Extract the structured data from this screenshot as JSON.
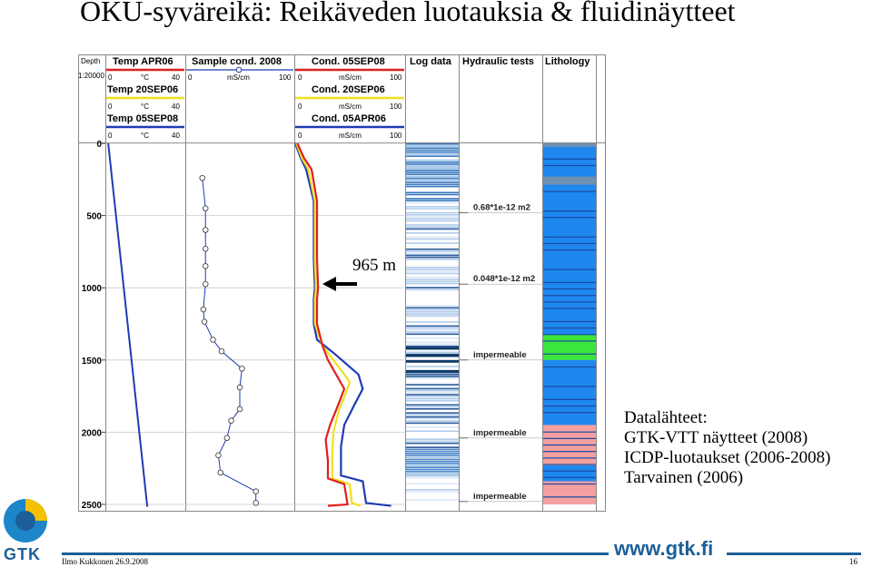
{
  "title": "OKU-syväreikä: Reikäveden luotauksia & fluidinäytteet",
  "header": {
    "depth_label": "Depth",
    "scale_label": "1:20000",
    "columns": [
      {
        "label": "Temp APR06"
      },
      {
        "label": "Sample cond. 2008"
      },
      {
        "label": "Cond. 05SEP08"
      },
      {
        "label": "Log data"
      },
      {
        "label": "Hydraulic tests"
      },
      {
        "label": "Lithology"
      }
    ],
    "temp_legends": [
      {
        "label": "Temp APR06",
        "min": "0",
        "unit": "°C",
        "max": "40",
        "color": "#e02020"
      },
      {
        "label": "Temp 20SEP06",
        "min": "0",
        "unit": "°C",
        "max": "40",
        "color": "#f0e020"
      },
      {
        "label": "Temp 05SEP08",
        "min": "0",
        "unit": "°C",
        "max": "40",
        "color": "#1e3cb4"
      }
    ],
    "sample_legend": {
      "min": "0",
      "unit": "mS/cm",
      "max": "100"
    },
    "cond_legends": [
      {
        "label": "Cond. 05SEP08",
        "min": "0",
        "unit": "mS/cm",
        "max": "100",
        "color": "#e02020"
      },
      {
        "label": "Cond. 20SEP06",
        "min": "0",
        "unit": "mS/cm",
        "max": "100",
        "color": "#f0e020"
      },
      {
        "label": "Cond. 05APR06",
        "min": "0",
        "unit": "mS/cm",
        "max": "100",
        "color": "#1e3cb4"
      }
    ]
  },
  "annotation": {
    "label": "965 m",
    "depth": 965
  },
  "chart_data": {
    "type": "line",
    "title": "OKU-syväreikä: Reikäveden luotauksia & fluidinäytteet",
    "depth_axis": {
      "label": "Depth",
      "ticks": [
        0,
        500,
        1000,
        1500,
        2000,
        2500
      ],
      "range": [
        0,
        2500
      ],
      "inverted": true
    },
    "temperature": {
      "range": [
        0,
        40
      ],
      "series": [
        {
          "depth": [
            0,
            2516
          ],
          "values": [
            1,
            21
          ]
        }
      ]
    },
    "sample_conductivity": {
      "range": [
        0,
        100
      ],
      "points": [
        {
          "depth": 240,
          "value": 15
        },
        {
          "depth": 450,
          "value": 18
        },
        {
          "depth": 600,
          "value": 18
        },
        {
          "depth": 730,
          "value": 18
        },
        {
          "depth": 850,
          "value": 18
        },
        {
          "depth": 975,
          "value": 18
        },
        {
          "depth": 1150,
          "value": 16
        },
        {
          "depth": 1235,
          "value": 17
        },
        {
          "depth": 1360,
          "value": 25
        },
        {
          "depth": 1440,
          "value": 33
        },
        {
          "depth": 1560,
          "value": 52
        },
        {
          "depth": 1690,
          "value": 50
        },
        {
          "depth": 1840,
          "value": 50
        },
        {
          "depth": 1920,
          "value": 42
        },
        {
          "depth": 2040,
          "value": 38
        },
        {
          "depth": 2160,
          "value": 30
        },
        {
          "depth": 2280,
          "value": 32
        },
        {
          "depth": 2410,
          "value": 65
        },
        {
          "depth": 2490,
          "value": 65
        }
      ]
    },
    "conductivity": {
      "range": [
        0,
        100
      ],
      "series": [
        {
          "color": "#1e3cb4",
          "depth": [
            0,
            100,
            180,
            400,
            800,
            1000,
            1080,
            1250,
            1360,
            1450,
            1600,
            1700,
            1800,
            1950,
            2100,
            2300,
            2340,
            2490,
            2510
          ],
          "values": [
            0,
            5,
            10,
            17,
            17,
            18,
            17,
            17,
            20,
            35,
            58,
            62,
            55,
            45,
            42,
            42,
            62,
            65,
            88
          ]
        },
        {
          "color": "#f0e020",
          "depth": [
            0,
            100,
            180,
            400,
            800,
            1000,
            1080,
            1250,
            1400,
            1500,
            1650,
            1720,
            1850,
            2000,
            2150,
            2320,
            2360,
            2490,
            2510
          ],
          "values": [
            1,
            6,
            12,
            18,
            18,
            19,
            18,
            18,
            25,
            35,
            50,
            47,
            40,
            35,
            34,
            34,
            50,
            52,
            60
          ]
        },
        {
          "color": "#e02020",
          "depth": [
            0,
            100,
            180,
            400,
            800,
            1000,
            1080,
            1250,
            1400,
            1500,
            1700,
            1800,
            1950,
            2050,
            2200,
            2320,
            2360,
            2500,
            2510
          ],
          "values": [
            2,
            8,
            15,
            20,
            20,
            21,
            20,
            20,
            25,
            30,
            45,
            40,
            32,
            28,
            30,
            30,
            45,
            48,
            30
          ]
        }
      ]
    },
    "hydraulic_tests": [
      {
        "label": "0.68*1e-12 m2",
        "depth": 480
      },
      {
        "label": "0.048*1e-12 m2",
        "depth": 975
      },
      {
        "label": "impermeable",
        "depth": 1500
      },
      {
        "label": "impermeable",
        "depth": 2040
      },
      {
        "label": "impermeable",
        "depth": 2480
      }
    ],
    "lithology_colors": {
      "base": "#1e88ef",
      "dark": "#1a4aa0",
      "green": "#3ce63c",
      "pink": "#f4a0a0",
      "grey": "#7090b0"
    }
  },
  "sources": {
    "heading": "Datalähteet:",
    "items": [
      "GTK-VTT näytteet (2008)",
      "ICDP-luotaukset (2006-2008)",
      "Tarvainen (2006)"
    ]
  },
  "footer": {
    "author": "Ilmo Kukkonen 26.9.2008",
    "page": "16",
    "url": "www.gtk.fi",
    "logo_text": "GTK"
  }
}
